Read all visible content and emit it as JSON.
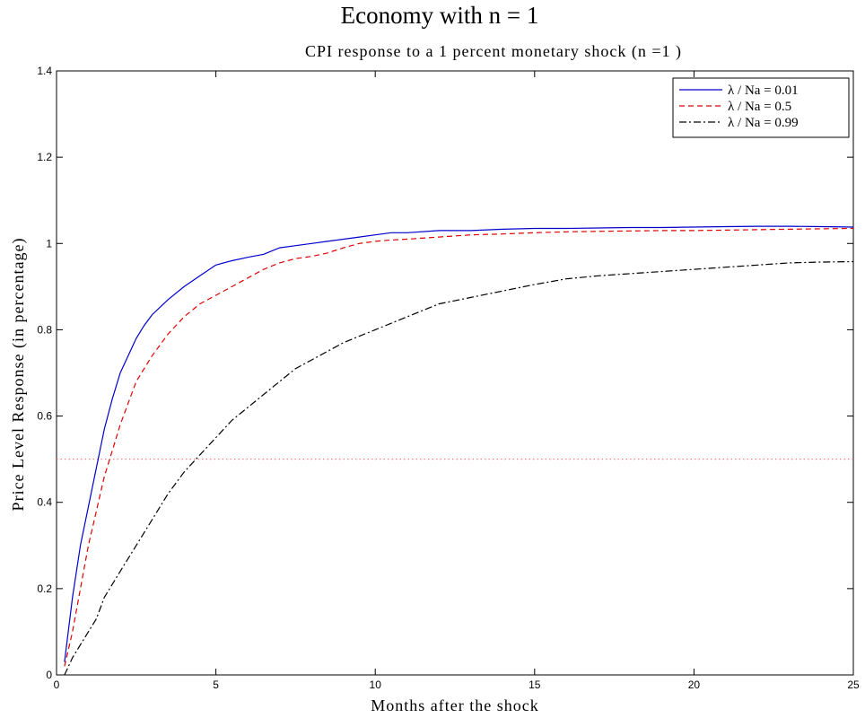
{
  "chart_data": {
    "type": "line",
    "super_title": "Economy with n = 1",
    "title": "CPI response to a 1 percent monetary shock (n =1 )",
    "xlabel": "Months after the shock",
    "ylabel": "Price Level Response (in percentage)",
    "xlim": [
      0,
      25
    ],
    "ylim": [
      0,
      1.4
    ],
    "xticks": [
      0,
      5,
      10,
      15,
      20,
      25
    ],
    "yticks": [
      0,
      0.2,
      0.4,
      0.6,
      0.8,
      1,
      1.2,
      1.4
    ],
    "xtick_labels": [
      "0",
      "5",
      "10",
      "15",
      "20",
      "25"
    ],
    "ytick_labels": [
      "0",
      "0.2",
      "0.4",
      "0.6",
      "0.8",
      "1",
      "1.2",
      "1.4"
    ],
    "grid": false,
    "legend_position": "top-right",
    "series": [
      {
        "name": "λ / Na = 0.01",
        "color": "#0000cc",
        "dash": "solid",
        "x": [
          0.25,
          0.5,
          0.75,
          1,
          1.25,
          1.5,
          1.75,
          2,
          2.25,
          2.5,
          2.75,
          3,
          3.5,
          4,
          4.5,
          5,
          5.5,
          6,
          6.5,
          7,
          7.5,
          8,
          8.5,
          9,
          9.5,
          10,
          10.5,
          11,
          12,
          13,
          14,
          15,
          16,
          17,
          18,
          19,
          20,
          21,
          22,
          23,
          24,
          25
        ],
        "y": [
          0.03,
          0.18,
          0.3,
          0.39,
          0.48,
          0.57,
          0.64,
          0.7,
          0.74,
          0.78,
          0.81,
          0.835,
          0.87,
          0.9,
          0.925,
          0.95,
          0.96,
          0.968,
          0.975,
          0.99,
          0.995,
          1.0,
          1.005,
          1.01,
          1.015,
          1.02,
          1.025,
          1.025,
          1.03,
          1.03,
          1.033,
          1.035,
          1.035,
          1.036,
          1.037,
          1.037,
          1.038,
          1.039,
          1.04,
          1.04,
          1.039,
          1.038
        ]
      },
      {
        "name": "λ / Na = 0.5",
        "color": "#dd0000",
        "dash": "dashed",
        "x": [
          0.25,
          0.5,
          0.75,
          1,
          1.25,
          1.5,
          1.75,
          2,
          2.25,
          2.5,
          2.75,
          3,
          3.5,
          4,
          4.5,
          5,
          5.5,
          6,
          6.5,
          7,
          7.5,
          8,
          8.5,
          9,
          9.5,
          10,
          10.5,
          11,
          12,
          13,
          14,
          15,
          16,
          17,
          18,
          19,
          20,
          21,
          22,
          23,
          24,
          25
        ],
        "y": [
          0.02,
          0.1,
          0.2,
          0.3,
          0.38,
          0.46,
          0.52,
          0.58,
          0.63,
          0.68,
          0.71,
          0.74,
          0.79,
          0.83,
          0.86,
          0.88,
          0.9,
          0.92,
          0.94,
          0.955,
          0.965,
          0.97,
          0.978,
          0.99,
          1.0,
          1.005,
          1.008,
          1.01,
          1.015,
          1.02,
          1.022,
          1.025,
          1.027,
          1.028,
          1.029,
          1.03,
          1.03,
          1.031,
          1.032,
          1.033,
          1.034,
          1.035
        ]
      },
      {
        "name": "λ / Na = 0.99",
        "color": "#000000",
        "dash": "dashdot",
        "x": [
          0.25,
          0.5,
          1,
          1.25,
          1.5,
          2,
          2.5,
          3,
          3.5,
          4,
          4.5,
          5,
          5.5,
          6,
          6.5,
          7,
          7.5,
          8,
          8.5,
          9,
          9.5,
          10,
          10.5,
          11,
          11.5,
          12,
          13,
          14,
          15,
          16,
          17,
          18,
          19,
          20,
          21,
          22,
          23,
          24,
          25
        ],
        "y": [
          0.0,
          0.04,
          0.1,
          0.13,
          0.18,
          0.24,
          0.3,
          0.36,
          0.42,
          0.47,
          0.51,
          0.55,
          0.59,
          0.62,
          0.65,
          0.68,
          0.71,
          0.73,
          0.75,
          0.77,
          0.785,
          0.8,
          0.815,
          0.83,
          0.845,
          0.86,
          0.875,
          0.89,
          0.905,
          0.918,
          0.925,
          0.93,
          0.935,
          0.94,
          0.945,
          0.95,
          0.955,
          0.957,
          0.958
        ]
      }
    ],
    "reference_lines": [
      {
        "y": 0.5,
        "color": "#ff6666",
        "dash": "dotted"
      }
    ]
  }
}
